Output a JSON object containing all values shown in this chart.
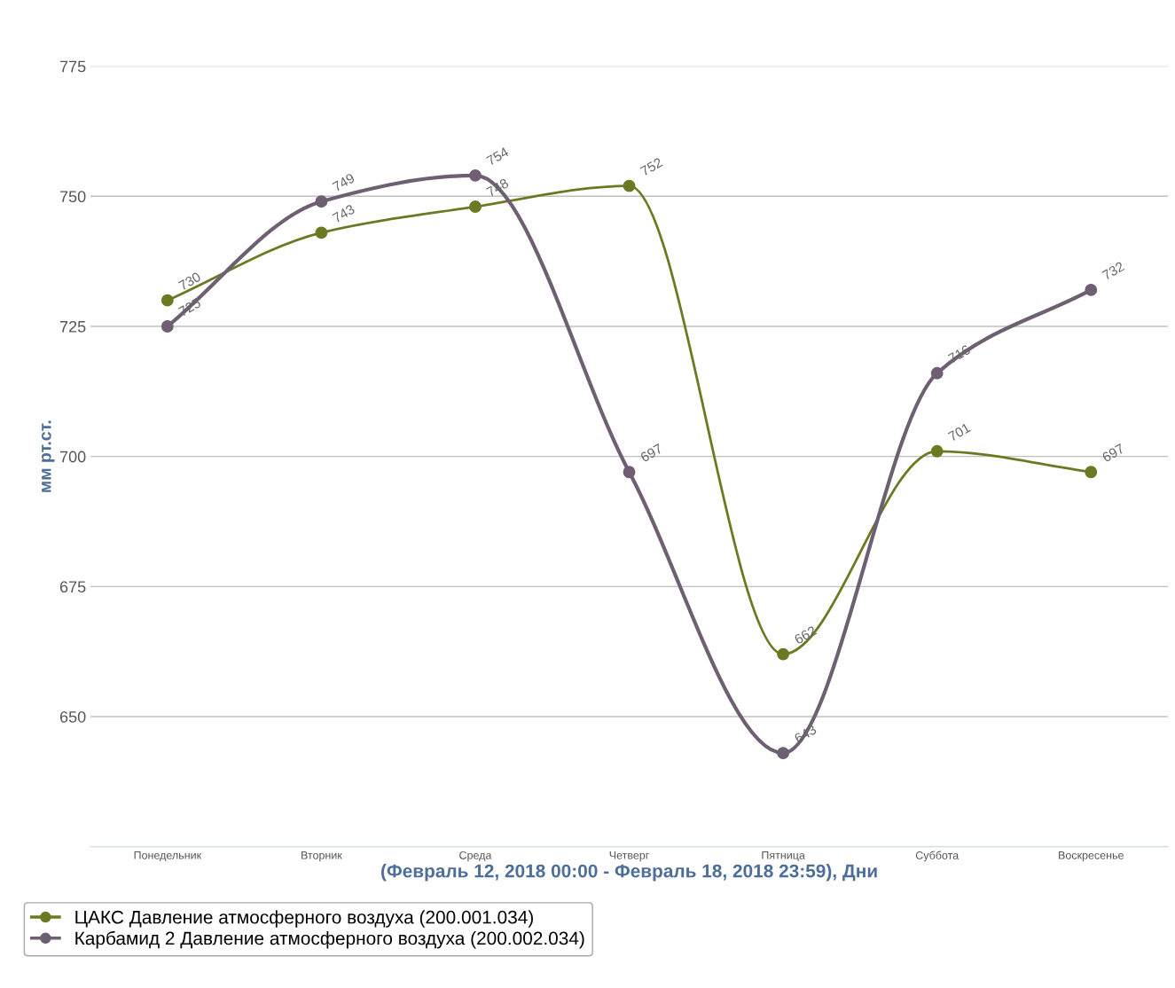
{
  "chart_data": {
    "type": "line",
    "xlabel": "(Февраль 12, 2018 00:00 - Февраль 18, 2018 23:59), Дни",
    "ylabel": "мм рт.ст.",
    "categories": [
      "Понедельник",
      "Вторник",
      "Среда",
      "Четверг",
      "Пятница",
      "Суббота",
      "Воскресенье"
    ],
    "series": [
      {
        "name": "ЦАКС Давление атмосферного воздуха (200.001.034)",
        "color": "#6b7a22",
        "values": [
          730,
          743,
          748,
          752,
          662,
          701,
          697
        ]
      },
      {
        "name": "Карбамид 2 Давление атмосферного воздуха (200.002.034)",
        "color": "#6e5f72",
        "values": [
          725,
          749,
          754,
          697,
          643,
          716,
          732
        ]
      }
    ],
    "ylim": [
      625,
      775
    ],
    "yticks": [
      650,
      675,
      700,
      725,
      750,
      775
    ],
    "grid": "y",
    "legend": "bottom",
    "marker": "circle",
    "line_style": "solid",
    "data_labels": true
  }
}
